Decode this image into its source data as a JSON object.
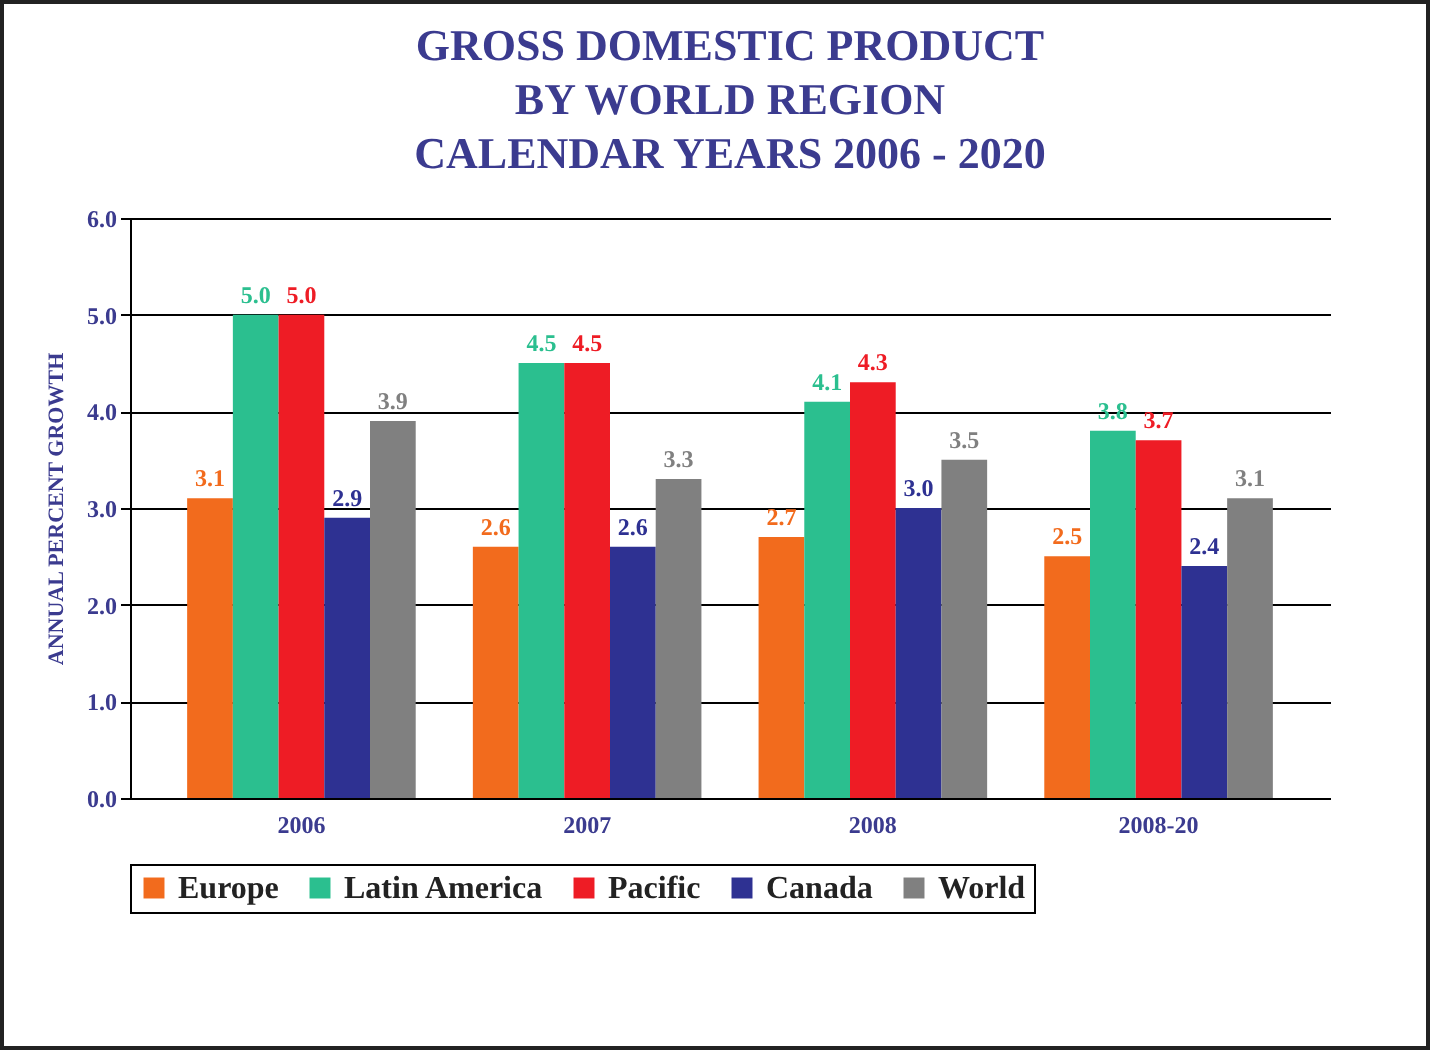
{
  "chart_data": {
    "type": "bar",
    "title": "GROSS DOMESTIC PRODUCT\nBY WORLD REGION\nCALENDAR YEARS  2006 - 2020",
    "ylabel": "ANNUAL PERCENT GROWTH",
    "categories": [
      "2006",
      "2007",
      "2008",
      "2008-20"
    ],
    "series": [
      {
        "name": "Europe",
        "color": "#f26b1d",
        "values": [
          3.1,
          2.6,
          2.7,
          2.5
        ],
        "value_labels": [
          "3.1",
          "2.6",
          "2.7",
          "2.5"
        ]
      },
      {
        "name": "Latin America",
        "color": "#2bbf8f",
        "values": [
          5.0,
          4.5,
          4.1,
          3.8
        ],
        "value_labels": [
          "5.0",
          "4.5",
          "4.1",
          "3.8"
        ]
      },
      {
        "name": "Pacific",
        "color": "#ee1c25",
        "values": [
          5.0,
          4.5,
          4.3,
          3.7
        ],
        "value_labels": [
          "5.0",
          "4.5",
          "4.3",
          "3.7"
        ]
      },
      {
        "name": "Canada",
        "color": "#2e3192",
        "values": [
          2.9,
          2.6,
          3.0,
          2.4
        ],
        "value_labels": [
          "2.9",
          "2.6",
          "3.0",
          "2.4"
        ]
      },
      {
        "name": "World",
        "color": "#808080",
        "values": [
          3.9,
          3.3,
          3.5,
          3.1
        ],
        "value_labels": [
          "3.9",
          "3.3",
          "3.5",
          "3.1"
        ]
      }
    ],
    "ylim": [
      0,
      6
    ],
    "yticks": [
      {
        "value": 0,
        "label": "0.0"
      },
      {
        "value": 1,
        "label": "1.0"
      },
      {
        "value": 2,
        "label": "2.0"
      },
      {
        "value": 3,
        "label": "3.0"
      },
      {
        "value": 4,
        "label": "4.0"
      },
      {
        "value": 5,
        "label": "5.0"
      },
      {
        "value": 6,
        "label": "6.0"
      }
    ],
    "grid": "y",
    "legend": "bottom"
  }
}
